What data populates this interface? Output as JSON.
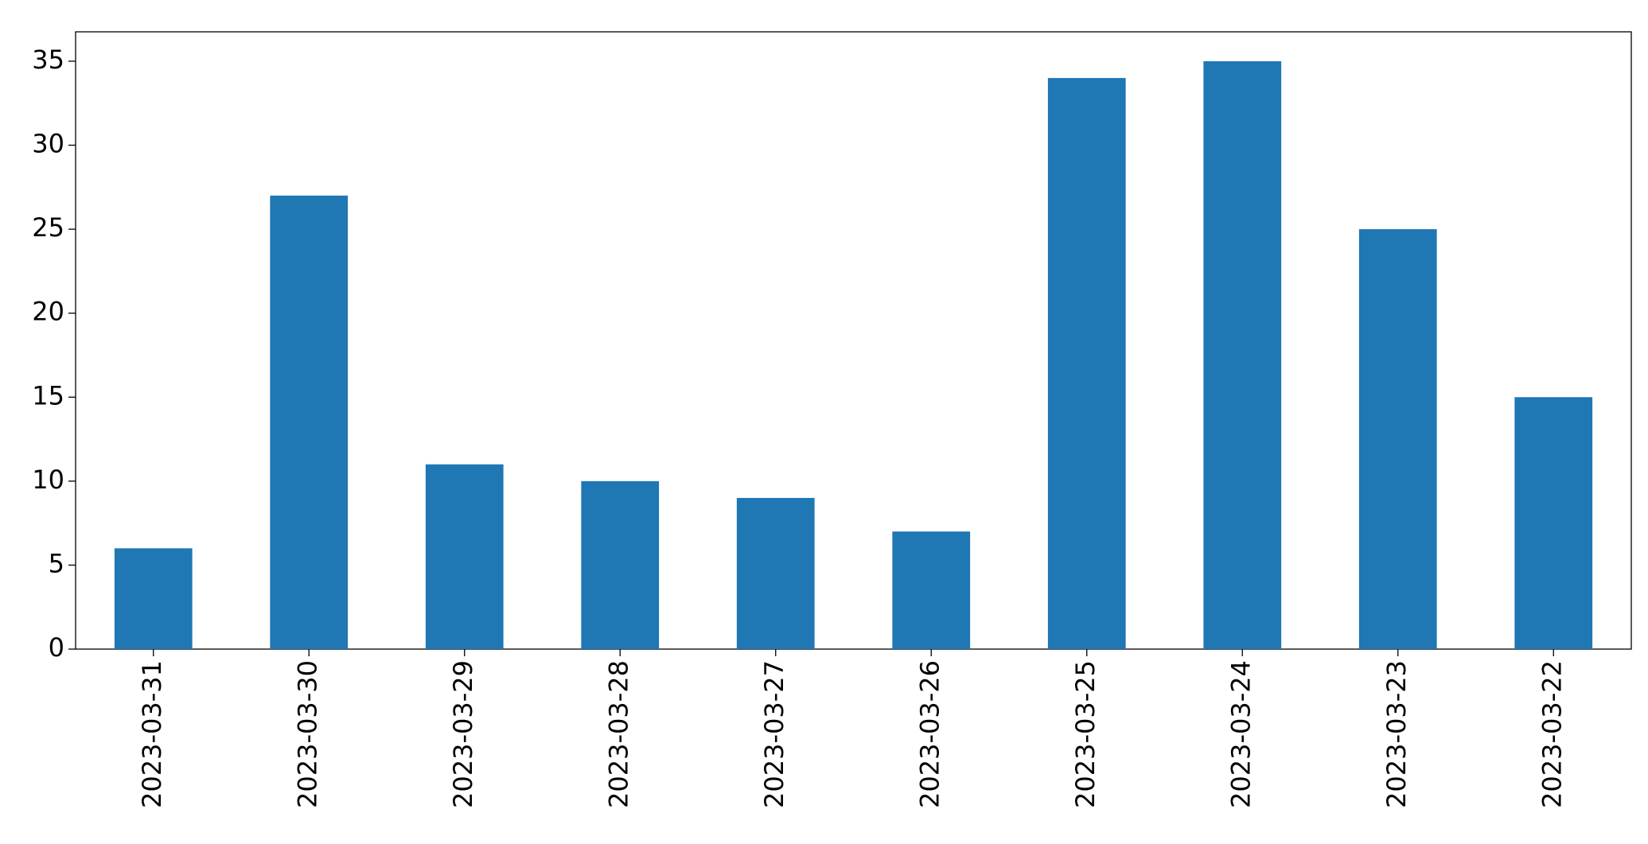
{
  "chart_data": {
    "type": "bar",
    "categories": [
      "2023-03-31",
      "2023-03-30",
      "2023-03-29",
      "2023-03-28",
      "2023-03-27",
      "2023-03-26",
      "2023-03-25",
      "2023-03-24",
      "2023-03-23",
      "2023-03-22"
    ],
    "values": [
      6,
      27,
      11,
      10,
      9,
      7,
      34,
      35,
      25,
      15
    ],
    "color": "#1f77b4",
    "ylim": [
      0,
      36.75
    ],
    "yticks": [
      0,
      5,
      10,
      15,
      20,
      25,
      30,
      35
    ],
    "grid": false
  }
}
